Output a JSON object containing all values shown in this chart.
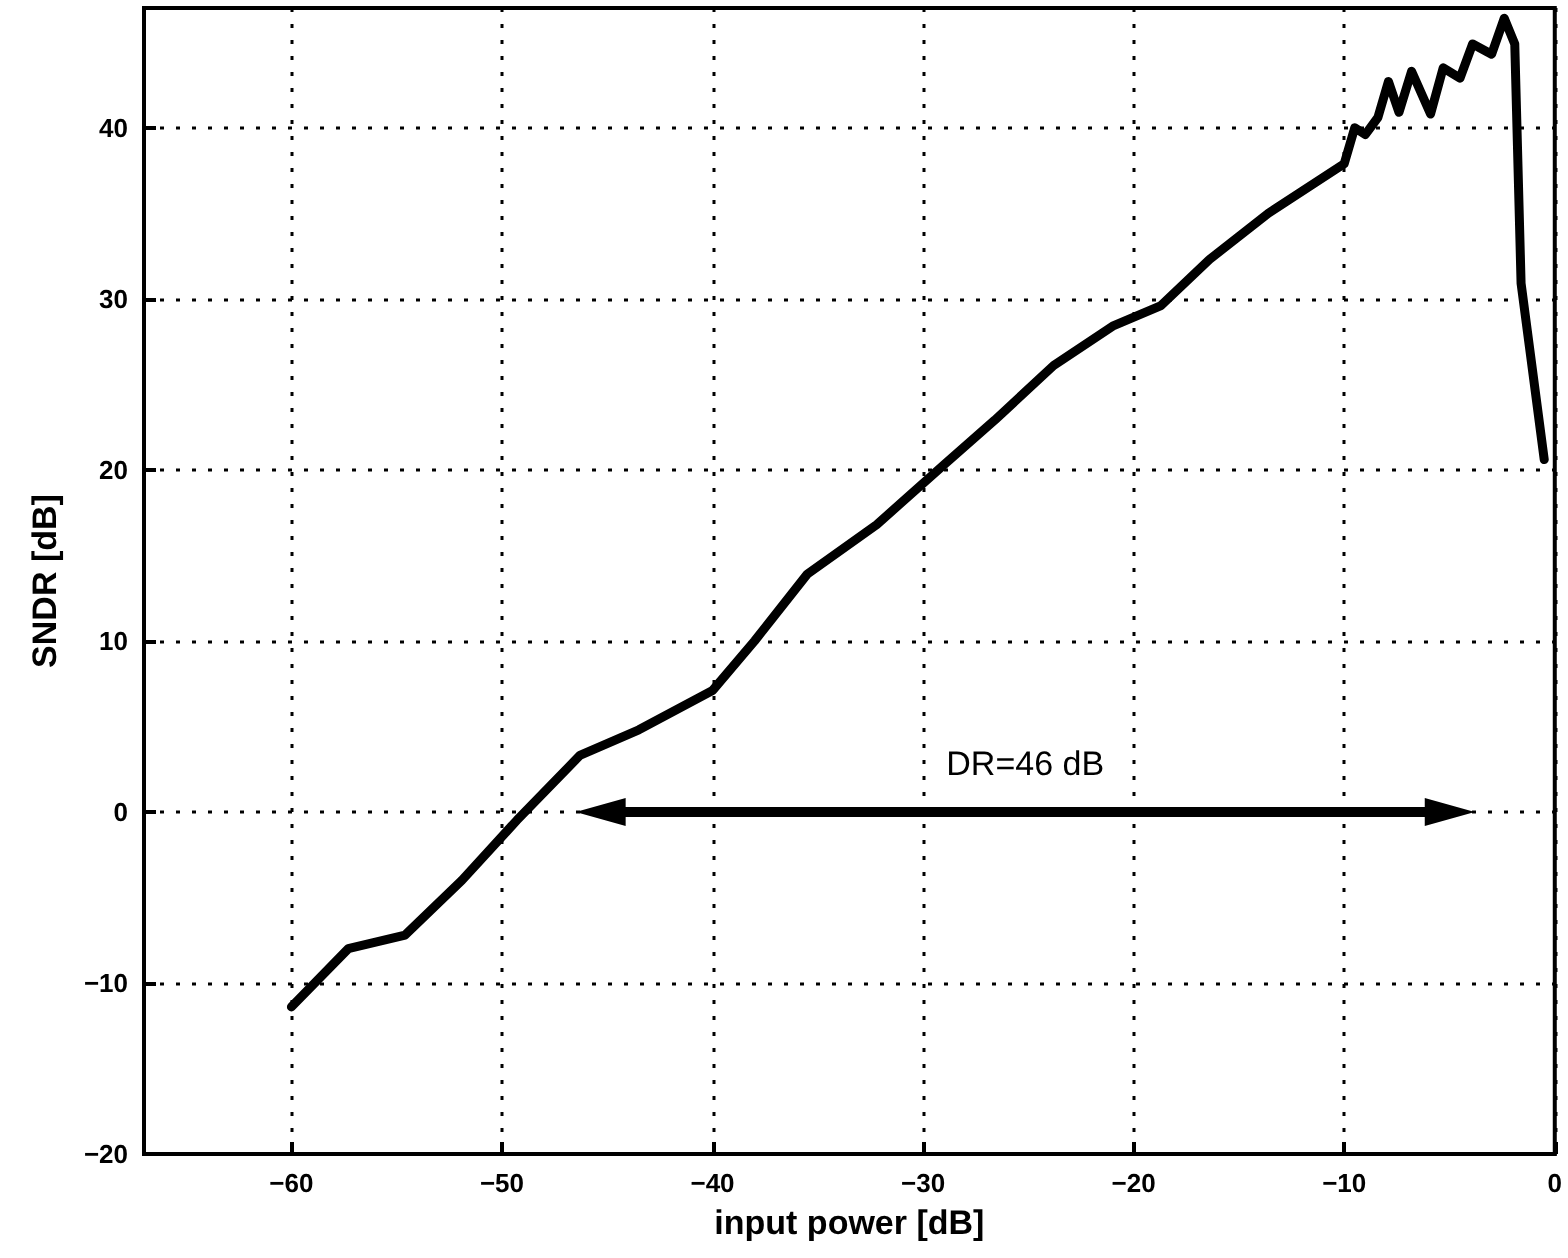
{
  "chart_data": {
    "type": "line",
    "xlabel": "input power [dB]",
    "ylabel": "SNDR [dB]",
    "x": [
      -60,
      -57.3,
      -54.6,
      -51.9,
      -49.3,
      -46.3,
      -43.5,
      -40,
      -38,
      -35.5,
      -32.2,
      -29,
      -26.6,
      -23.8,
      -21,
      -18.7,
      -16.4,
      -13.6,
      -10,
      -9.5,
      -9,
      -8.4,
      -7.9,
      -7.4,
      -6.8,
      -5.9,
      -5.3,
      -4.5,
      -3.9,
      -3,
      -2.4,
      -1.9,
      -1.6,
      -0.5
    ],
    "series": [
      {
        "color": "#000000",
        "values": [
          -11.4,
          -8,
          -7.2,
          -4,
          -0.5,
          3.3,
          4.8,
          7.1,
          10,
          13.9,
          16.8,
          20.3,
          22.9,
          26.1,
          28.4,
          29.6,
          32.3,
          35,
          37.9,
          40,
          39.6,
          40.6,
          42.7,
          40.9,
          43.3,
          40.8,
          43.5,
          42.9,
          44.9,
          44.3,
          46.4,
          44.9,
          30.9,
          20.6
        ]
      }
    ],
    "xlim": [
      -67,
      0
    ],
    "xticks": [
      -60,
      -50,
      -40,
      -30,
      -20,
      -10,
      0
    ],
    "ylim": [
      -20,
      47
    ],
    "yticks": [
      -20,
      -10,
      0,
      10,
      20,
      30,
      40
    ],
    "annotations": [
      "DR=46 dB"
    ],
    "grid": true,
    "marker": "none",
    "line_style": "solid"
  }
}
